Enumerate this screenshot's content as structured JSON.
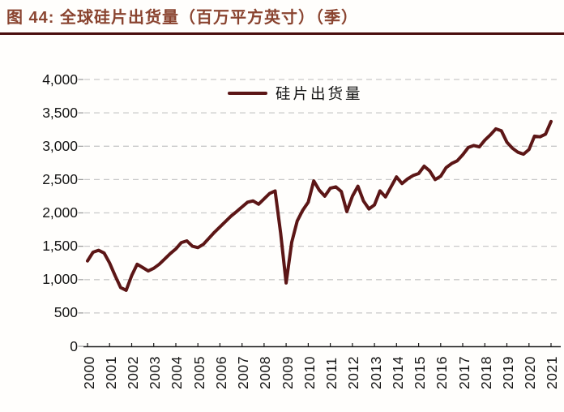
{
  "figure": {
    "title": "图 44:  全球硅片出货量（百万平方英寸）（季）"
  },
  "colors": {
    "line": "#5c1616",
    "title_text": "#8a4430",
    "title_rule": "#4a0d0d",
    "gridline": "#c9c9c9",
    "axis": "#1a1a1a"
  },
  "chart_data": {
    "type": "line",
    "title": "全球硅片出货量（百万平方英寸）（季）",
    "xlabel": "",
    "ylabel": "",
    "ylim": [
      0,
      4000
    ],
    "grid": "horizontal dashed",
    "legend_position": "top-center",
    "x_unit": "quarterly, 2000Q1 - 2021Q1",
    "x_tick_labels": [
      "2000",
      "2001",
      "2002",
      "2003",
      "2004",
      "2005",
      "2006",
      "2007",
      "2008",
      "2009",
      "2010",
      "2011",
      "2012",
      "2013",
      "2014",
      "2015",
      "2016",
      "2017",
      "2018",
      "2019",
      "2020",
      "2021"
    ],
    "y_tick_labels": [
      "0",
      "500",
      "1,000",
      "1,500",
      "2,000",
      "2,500",
      "3,000",
      "3,500",
      "4,000"
    ],
    "series": [
      {
        "name": "硅片出货量",
        "values": [
          1280,
          1410,
          1440,
          1400,
          1250,
          1060,
          880,
          840,
          1060,
          1230,
          1180,
          1130,
          1170,
          1230,
          1310,
          1390,
          1460,
          1555,
          1580,
          1500,
          1480,
          1530,
          1620,
          1710,
          1790,
          1870,
          1950,
          2020,
          2090,
          2160,
          2180,
          2130,
          2210,
          2290,
          2330,
          1700,
          950,
          1560,
          1880,
          2040,
          2160,
          2480,
          2340,
          2250,
          2370,
          2390,
          2320,
          2020,
          2250,
          2400,
          2180,
          2060,
          2120,
          2330,
          2240,
          2390,
          2540,
          2440,
          2510,
          2560,
          2590,
          2700,
          2630,
          2500,
          2550,
          2680,
          2740,
          2780,
          2870,
          2980,
          3010,
          2990,
          3090,
          3170,
          3260,
          3230,
          3060,
          2970,
          2910,
          2880,
          2950,
          3150,
          3140,
          3180,
          3370
        ]
      }
    ]
  }
}
